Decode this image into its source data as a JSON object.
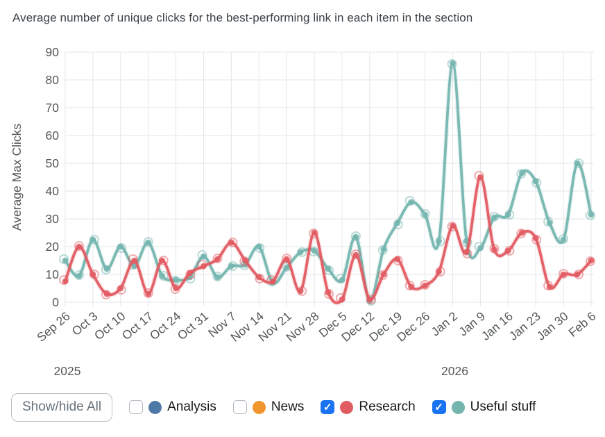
{
  "title": "Average number of unique clicks for the best-performing link in each item in the section",
  "chart_data": {
    "type": "line",
    "title": "Average number of unique clicks for the best-performing link in each item in the section",
    "xlabel": "",
    "ylabel": "Average Max Clicks",
    "ylim": [
      0,
      90
    ],
    "ytick_step": 10,
    "grid": true,
    "legend_position": "bottom",
    "points_per_label_interval": 2,
    "x_axis": {
      "tick_labels": [
        "Sep 26",
        "Oct 3",
        "Oct 10",
        "Oct 17",
        "Oct 24",
        "Oct 31",
        "Nov 7",
        "Nov 14",
        "Nov 21",
        "Nov 28",
        "Dec 5",
        "Dec 12",
        "Dec 19",
        "Dec 26",
        "Jan 2",
        "Jan 9",
        "Jan 16",
        "Jan 23",
        "Jan 30",
        "Feb 6"
      ],
      "year_labels": [
        {
          "text": "2025",
          "tick_index": 0
        },
        {
          "text": "2026",
          "tick_index": 14
        }
      ]
    },
    "series": [
      {
        "name": "Analysis",
        "color": "#4e79a7",
        "visible": false,
        "values": []
      },
      {
        "name": "News",
        "color": "#f0962d",
        "visible": false,
        "values": []
      },
      {
        "name": "Research",
        "color": "#e15b62",
        "visible": true,
        "values": [
          7.5,
          20,
          10,
          3,
          5,
          15,
          3,
          15,
          5,
          10.5,
          13,
          15.5,
          21.5,
          15,
          9,
          7.5,
          15.5,
          4,
          25,
          3.5,
          1,
          17,
          1,
          10,
          15.5,
          5.5,
          6,
          11,
          27.5,
          18,
          45,
          19,
          18.5,
          25,
          23,
          5.5,
          10,
          10,
          15
        ]
      },
      {
        "name": "Useful stuff",
        "color": "#75b5af",
        "visible": true,
        "values": [
          15,
          9.5,
          22.5,
          12,
          20,
          13,
          21.5,
          9.5,
          8,
          9,
          16.5,
          9,
          13,
          13.5,
          20,
          7,
          12.5,
          18,
          18.5,
          12,
          8,
          23.5,
          0.5,
          19,
          28.5,
          36,
          31.5,
          22,
          86,
          22,
          19.5,
          30.5,
          31.5,
          46.5,
          43.5,
          28.5,
          22.5,
          50,
          31.5
        ]
      }
    ]
  },
  "legend": {
    "show_hide_all_label": "Show/hide All",
    "items": [
      {
        "label": "Analysis",
        "color": "#4e79a7",
        "checked": false
      },
      {
        "label": "News",
        "color": "#f0962d",
        "checked": false
      },
      {
        "label": "Research",
        "color": "#e15b62",
        "checked": true
      },
      {
        "label": "Useful stuff",
        "color": "#75b5af",
        "checked": true
      }
    ]
  },
  "icons": {
    "checkmark": "✓"
  }
}
